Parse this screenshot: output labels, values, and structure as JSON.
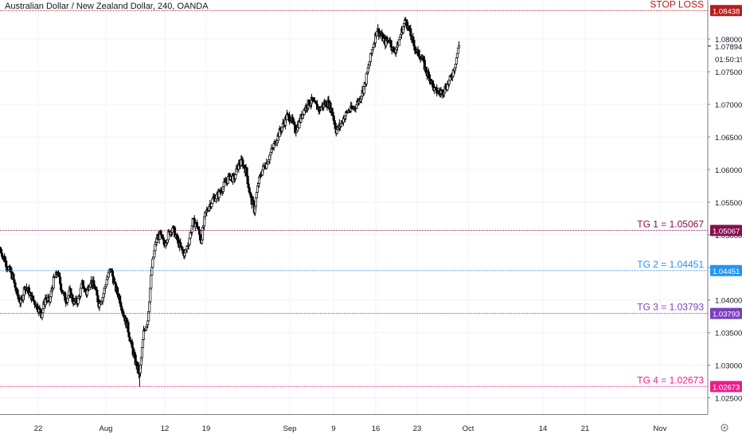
{
  "header": {
    "title": "Australian Dollar / New Zealand Dollar, 240, OANDA"
  },
  "colors": {
    "candle": "#000000",
    "grid": "#f0f3fa",
    "axis_text": "#131722",
    "stop_loss": "#b71c1c",
    "tg1": "#880e4f",
    "tg2": "#2196f3",
    "tg3": "#7b3fbf",
    "tg4": "#e91e8c",
    "badge_dark": "#131722"
  },
  "chart_data": {
    "type": "candlestick",
    "title": "Australian Dollar / New Zealand Dollar, 240, OANDA",
    "y_ticks": [
      "1.08000",
      "1.07500",
      "1.07000",
      "1.06500",
      "1.06000",
      "1.05500",
      "1.05000",
      "1.04500",
      "1.04000",
      "1.03500",
      "1.03000",
      "1.02500"
    ],
    "ylim": [
      1.0225,
      1.086
    ],
    "x_ticks": [
      "22",
      "Aug",
      "12",
      "19",
      "Sep",
      "9",
      "16",
      "23",
      "Oct",
      "14",
      "21",
      "Nov"
    ],
    "current_price": "1.07894",
    "countdown": "01:50:19",
    "horizontal_lines": [
      {
        "label": "STOP LOSS",
        "value": 1.08438,
        "price": "1.08438",
        "color": "#b71c1c"
      },
      {
        "label": "TG 1 = 1.05067",
        "value": 1.05067,
        "price": "1.05067",
        "color": "#880e4f"
      },
      {
        "label": "TG 2 = 1.04451",
        "value": 1.04451,
        "price": "1.04451",
        "color": "#2196f3"
      },
      {
        "label": "TG 3 = 1.03793",
        "value": 1.03793,
        "price": "1.03793",
        "color": "#7b3fbf"
      },
      {
        "label": "TG 4 = 1.02673",
        "value": 1.02673,
        "price": "1.02673",
        "color": "#e91e8c"
      }
    ],
    "price_path": [
      1.0478,
      1.0462,
      1.0448,
      1.0435,
      1.041,
      1.0395,
      1.0422,
      1.0412,
      1.04,
      1.039,
      1.0378,
      1.0402,
      1.0398,
      1.043,
      1.0442,
      1.0415,
      1.04,
      1.0412,
      1.0395,
      1.04,
      1.0425,
      1.041,
      1.043,
      1.042,
      1.0395,
      1.0405,
      1.0432,
      1.0448,
      1.042,
      1.0405,
      1.038,
      1.036,
      1.033,
      1.0305,
      1.0285,
      1.035,
      1.037,
      1.045,
      1.049,
      1.05,
      1.0485,
      1.05,
      1.0512,
      1.0495,
      1.048,
      1.047,
      1.049,
      1.052,
      1.0515,
      1.049,
      1.053,
      1.0545,
      1.0555,
      1.056,
      1.057,
      1.058,
      1.059,
      1.0585,
      1.0605,
      1.0612,
      1.0598,
      1.056,
      1.0538,
      1.058,
      1.06,
      1.061,
      1.0625,
      1.064,
      1.0655,
      1.0668,
      1.0682,
      1.0678,
      1.066,
      1.0672,
      1.069,
      1.07,
      1.0705,
      1.0698,
      1.0692,
      1.07,
      1.0702,
      1.069,
      1.066,
      1.0668,
      1.0682,
      1.069,
      1.0693,
      1.07,
      1.0712,
      1.073,
      1.076,
      1.079,
      1.0815,
      1.0805,
      1.0795,
      1.08,
      1.078,
      1.079,
      1.0812,
      1.083,
      1.081,
      1.079,
      1.0778,
      1.077,
      1.075,
      1.074,
      1.0722,
      1.0718,
      1.072,
      1.0728,
      1.074,
      1.076,
      1.079
    ],
    "path_x_range": [
      0.5,
      576.5
    ],
    "path_y_overrides": {
      "mid_dip_index": 34,
      "mid_dip_low": 1.02673
    }
  }
}
